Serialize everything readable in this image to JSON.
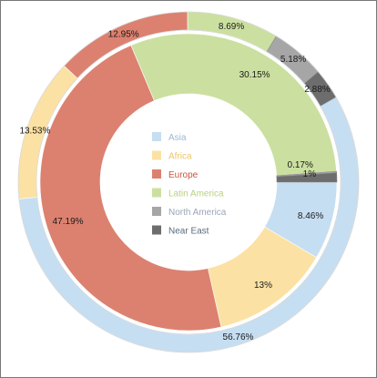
{
  "chart_data": {
    "type": "pie",
    "variant": "nested-donut",
    "title": "",
    "legend": {
      "placement": "center",
      "entries": [
        {
          "name": "Asia",
          "color": "#c6def1",
          "text_color": "#9ab9d6"
        },
        {
          "name": "Africa",
          "color": "#fbe1a3",
          "text_color": "#edc56b"
        },
        {
          "name": "Europe",
          "color": "#dc8170",
          "text_color": "#c8553d"
        },
        {
          "name": "Latin America",
          "color": "#cbe0a0",
          "text_color": "#b9d181"
        },
        {
          "name": "North America",
          "color": "#a6a6a6",
          "text_color": "#9aa6b5"
        },
        {
          "name": "Near East",
          "color": "#6d6d6d",
          "text_color": "#5a6b7d"
        }
      ]
    },
    "series": [
      {
        "ring": "outer",
        "values": [
          {
            "category": "Asia",
            "value": 56.76,
            "label": "56.76%"
          },
          {
            "category": "Africa",
            "value": 13.53,
            "label": "13.53%"
          },
          {
            "category": "Europe",
            "value": 12.95,
            "label": "12.95%"
          },
          {
            "category": "Latin America",
            "value": 8.69,
            "label": "8.69%"
          },
          {
            "category": "North America",
            "value": 5.18,
            "label": "5.18%"
          },
          {
            "category": "Near East",
            "value": 2.88,
            "label": "2.88%"
          }
        ]
      },
      {
        "ring": "inner",
        "values": [
          {
            "category": "Asia",
            "value": 8.46,
            "label": "8.46%"
          },
          {
            "category": "Africa",
            "value": 13,
            "label": "13%"
          },
          {
            "category": "Europe",
            "value": 47.19,
            "label": "47.19%"
          },
          {
            "category": "Latin America",
            "value": 30.15,
            "label": "30.15%"
          },
          {
            "category": "North America",
            "value": 0.17,
            "label": "0.17%"
          },
          {
            "category": "Near East",
            "value": 1,
            "label": "1%"
          }
        ]
      }
    ]
  }
}
